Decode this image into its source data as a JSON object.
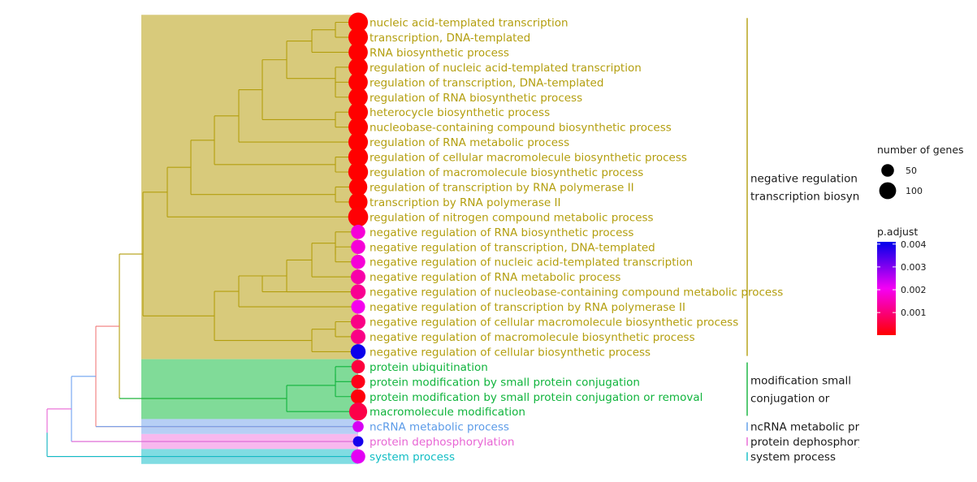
{
  "chart_data": {
    "type": "dendrogram",
    "terms": [
      {
        "label": "nucleic acid-templated transcription",
        "cluster": 0,
        "count": 150,
        "p_adjust": 1e-05
      },
      {
        "label": "transcription, DNA-templated",
        "cluster": 0,
        "count": 150,
        "p_adjust": 1e-05
      },
      {
        "label": "RNA biosynthetic process",
        "cluster": 0,
        "count": 145,
        "p_adjust": 1e-05
      },
      {
        "label": "regulation of nucleic acid-templated transcription",
        "cluster": 0,
        "count": 145,
        "p_adjust": 1e-05
      },
      {
        "label": "regulation of transcription, DNA-templated",
        "cluster": 0,
        "count": 145,
        "p_adjust": 1e-05
      },
      {
        "label": "regulation of RNA biosynthetic process",
        "cluster": 0,
        "count": 145,
        "p_adjust": 1e-05
      },
      {
        "label": "heterocycle biosynthetic process",
        "cluster": 0,
        "count": 150,
        "p_adjust": 1e-05
      },
      {
        "label": "nucleobase-containing compound biosynthetic process",
        "cluster": 0,
        "count": 150,
        "p_adjust": 1e-05
      },
      {
        "label": "regulation of RNA metabolic process",
        "cluster": 0,
        "count": 150,
        "p_adjust": 1e-05
      },
      {
        "label": "regulation of cellular macromolecule biosynthetic process",
        "cluster": 0,
        "count": 155,
        "p_adjust": 1e-05
      },
      {
        "label": "regulation of macromolecule biosynthetic process",
        "cluster": 0,
        "count": 155,
        "p_adjust": 1e-05
      },
      {
        "label": "regulation of transcription by RNA polymerase II",
        "cluster": 0,
        "count": 125,
        "p_adjust": 1e-05
      },
      {
        "label": "transcription by RNA polymerase II",
        "cluster": 0,
        "count": 135,
        "p_adjust": 1e-05
      },
      {
        "label": "regulation of nitrogen compound metabolic process",
        "cluster": 0,
        "count": 160,
        "p_adjust": 5e-05
      },
      {
        "label": "negative regulation of RNA biosynthetic process",
        "cluster": 0,
        "count": 60,
        "p_adjust": 0.0018
      },
      {
        "label": "negative regulation of transcription, DNA-templated",
        "cluster": 0,
        "count": 60,
        "p_adjust": 0.0018
      },
      {
        "label": "negative regulation of nucleic acid-templated transcription",
        "cluster": 0,
        "count": 60,
        "p_adjust": 0.0018
      },
      {
        "label": "negative regulation of RNA metabolic process",
        "cluster": 0,
        "count": 65,
        "p_adjust": 0.0014
      },
      {
        "label": "negative regulation of nucleobase-containing compound metabolic process",
        "cluster": 0,
        "count": 70,
        "p_adjust": 0.0012
      },
      {
        "label": "negative regulation of transcription by RNA polymerase II",
        "cluster": 0,
        "count": 55,
        "p_adjust": 0.002
      },
      {
        "label": "negative regulation of cellular macromolecule biosynthetic process",
        "cluster": 0,
        "count": 65,
        "p_adjust": 0.0011
      },
      {
        "label": "negative regulation of macromolecule biosynthetic process",
        "cluster": 0,
        "count": 65,
        "p_adjust": 0.0011
      },
      {
        "label": "negative regulation of cellular biosynthetic process",
        "cluster": 0,
        "count": 70,
        "p_adjust": 0.004
      },
      {
        "label": "protein ubiquitination",
        "cluster": 1,
        "count": 50,
        "p_adjust": 0.0005
      },
      {
        "label": "protein modification by small protein conjugation",
        "cluster": 1,
        "count": 55,
        "p_adjust": 0.0002
      },
      {
        "label": "protein modification by small protein conjugation or removal",
        "cluster": 1,
        "count": 65,
        "p_adjust": 0.0001
      },
      {
        "label": "macromolecule modification",
        "cluster": 1,
        "count": 120,
        "p_adjust": 0.0006
      },
      {
        "label": "ncRNA metabolic process",
        "cluster": 2,
        "count": 25,
        "p_adjust": 0.0023
      },
      {
        "label": "protein dephosphorylation",
        "cluster": 3,
        "count": 20,
        "p_adjust": 0.0039
      },
      {
        "label": "system process",
        "cluster": 4,
        "count": 60,
        "p_adjust": 0.0022
      }
    ],
    "clusters": [
      {
        "name": "negative regulation\ntranscription biosynth",
        "lines": [
          "negative regulation",
          "transcription biosynth"
        ],
        "color": "#B39E0E",
        "bg": "#D8CA7B"
      },
      {
        "name": "modification small\nconjugation or",
        "lines": [
          "modification small",
          "conjugation or"
        ],
        "color": "#10B43C",
        "bg": "#80DB98"
      },
      {
        "name": "ncRNA metabolic pro",
        "lines": [
          "ncRNA metabolic pro"
        ],
        "color": "#5B9BE8",
        "bg": "#B6CFF5"
      },
      {
        "name": "protein dephosphoryl",
        "lines": [
          "protein dephosphoryl"
        ],
        "color": "#E865D4",
        "bg": "#F7B8EE"
      },
      {
        "name": "system process",
        "lines": [
          "system process"
        ],
        "color": "#10BDC4",
        "bg": "#80DCE2"
      }
    ],
    "root_branch_colors": {
      "top": "#F07A7A",
      "mid": "#6FA3F0",
      "low": "#E865D4",
      "sys": "#10BDC4"
    },
    "legend": {
      "size_title": "number of genes",
      "size_breaks": [
        50,
        100
      ],
      "color_title": "p.adjust",
      "color_breaks": [
        0.001,
        0.002,
        0.003,
        0.004
      ],
      "color_range": [
        1e-05,
        0.0041
      ],
      "color_low": "#FF0000",
      "color_high": "#0000FF"
    }
  }
}
